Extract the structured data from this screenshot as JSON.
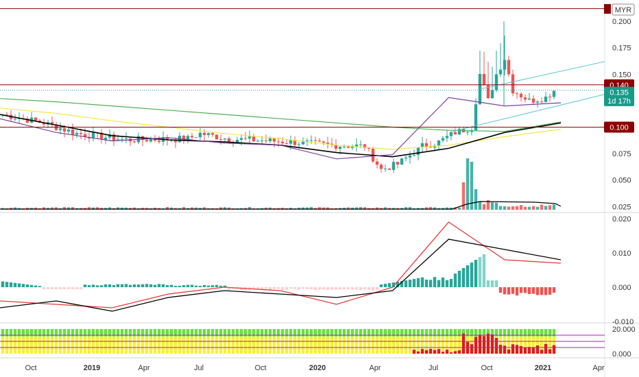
{
  "chart_data": [
    {
      "type": "candlestick",
      "pane": "price",
      "currency": "MYR",
      "y_ticks": [
        0.025,
        0.05,
        0.075,
        0.1,
        0.125,
        0.15,
        0.175,
        0.2
      ],
      "y_tick_labels": [
        "0.025",
        "0.050",
        "0.075",
        "",
        "",
        "0.150",
        "0.175",
        "0.200"
      ],
      "ylim": [
        0.02,
        0.215
      ],
      "x_tick_labels": [
        "Oct",
        "2019",
        "Apr",
        "Jul",
        "Oct",
        "2020",
        "Apr",
        "Jul",
        "Oct",
        "2021",
        "Apr"
      ],
      "horizontal_levels": [
        0.212,
        0.14,
        0.1
      ],
      "price_tags": [
        {
          "label": "0.140",
          "value": 0.14,
          "color": "#8b0000"
        },
        {
          "label": "0.135",
          "value": 0.133,
          "color": "#1a9a8a"
        },
        {
          "label": "1d 17h",
          "value": 0.125,
          "color": "#1a9a8a"
        },
        {
          "label": "0.100",
          "value": 0.1,
          "color": "#8b0000"
        }
      ],
      "last_price_dotted": 0.135,
      "top_tag": {
        "label": "MYR"
      },
      "series": [
        {
          "name": "",
          "kind": "ma_green",
          "color": "#4caf50",
          "values": [
            0.127,
            0.124,
            0.12,
            0.116,
            0.112,
            0.108,
            0.104,
            0.1,
            0.097,
            0.096,
            0.105
          ]
        },
        {
          "name": "",
          "kind": "ma_yellow",
          "color": "#f5e642",
          "values": [
            0.118,
            0.113,
            0.106,
            0.1,
            0.094,
            0.089,
            0.083,
            0.079,
            0.083,
            0.091,
            0.098
          ]
        },
        {
          "name": "",
          "kind": "ma_black",
          "color": "#000000",
          "values": [
            0.112,
            0.102,
            0.092,
            0.088,
            0.086,
            0.083,
            0.076,
            0.072,
            0.08,
            0.095,
            0.104
          ]
        },
        {
          "name": "",
          "kind": "ma_purple",
          "color": "#7b3f9e",
          "values": [
            0.108,
            0.095,
            0.087,
            0.09,
            0.085,
            0.083,
            0.07,
            0.074,
            0.128,
            0.12,
            0.123
          ]
        }
      ]
    },
    {
      "type": "line",
      "pane": "macd",
      "y_ticks": [
        0.02,
        0.01,
        0.0,
        -0.01
      ],
      "y_tick_labels": [
        "0.020",
        "0.010",
        "0.000",
        "-0.010"
      ],
      "ylim": [
        -0.011,
        0.021
      ],
      "series": [
        {
          "name": "",
          "color": "#e53935",
          "values": [
            -0.004,
            -0.005,
            -0.006,
            -0.002,
            0.0,
            -0.001,
            -0.005,
            0.0,
            0.019,
            0.008,
            0.007
          ]
        },
        {
          "name": "",
          "color": "#000000",
          "values": [
            -0.006,
            -0.004,
            -0.007,
            -0.003,
            -0.001,
            -0.002,
            -0.003,
            -0.001,
            0.014,
            0.011,
            0.008
          ]
        }
      ]
    },
    {
      "type": "bar",
      "pane": "oscillator",
      "y_ticks": [
        20,
        0
      ],
      "y_tick_labels": [
        "20.000",
        "0.000"
      ],
      "ylim": [
        0,
        20
      ]
    }
  ]
}
